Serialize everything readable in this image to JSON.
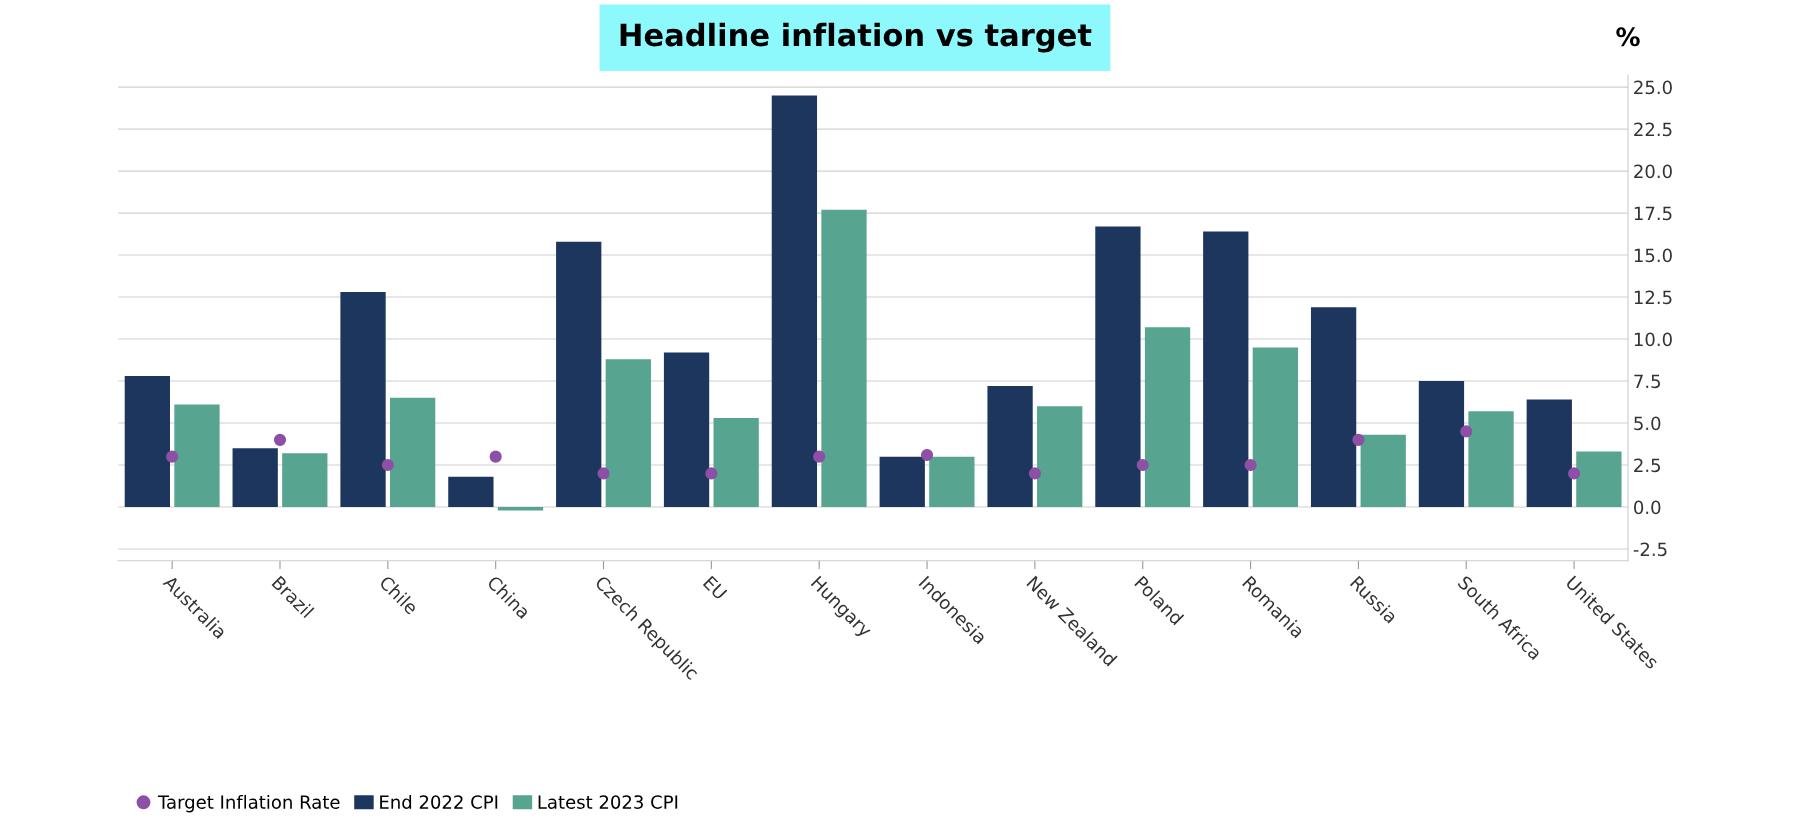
{
  "chart_data": {
    "type": "bar",
    "title": "Headline inflation vs target",
    "ylabel": "%",
    "categories": [
      "Australia",
      "Brazil",
      "Chile",
      "China",
      "Czech Republic",
      "EU",
      "Hungary",
      "Indonesia",
      "New Zealand",
      "Poland",
      "Romania",
      "Russia",
      "South Africa",
      "United States"
    ],
    "series": [
      {
        "name": "Target Inflation Rate",
        "type": "scatter",
        "color": "#8e4fa6",
        "values": [
          3.0,
          4.0,
          2.5,
          3.0,
          2.0,
          2.0,
          3.0,
          3.1,
          2.0,
          2.5,
          2.5,
          4.0,
          4.5,
          2.0
        ]
      },
      {
        "name": "End 2022 CPI",
        "color": "#1c365e",
        "values": [
          7.8,
          3.5,
          12.8,
          1.8,
          15.8,
          9.2,
          24.5,
          3.0,
          7.2,
          16.7,
          16.4,
          11.9,
          7.5,
          6.4
        ]
      },
      {
        "name": "Latest 2023 CPI",
        "color": "#57a490",
        "values": [
          6.1,
          3.2,
          6.5,
          -0.2,
          8.8,
          5.3,
          17.7,
          3.0,
          6.0,
          10.7,
          9.5,
          4.3,
          5.7,
          3.3
        ]
      }
    ],
    "ylim": [
      -3.2,
      25.7
    ],
    "yticks": [
      {
        "value": -2.5,
        "label": "-2.5"
      },
      {
        "value": 0,
        "label": "0.0"
      },
      {
        "value": 2.5,
        "label": "2.5"
      },
      {
        "value": 5,
        "label": "5.0"
      },
      {
        "value": 7.5,
        "label": "7.5"
      },
      {
        "value": 10,
        "label": "10.0"
      },
      {
        "value": 12.5,
        "label": "12.5"
      },
      {
        "value": 15,
        "label": "15.0"
      },
      {
        "value": 17.5,
        "label": "17.5"
      },
      {
        "value": 20,
        "label": "20.0"
      },
      {
        "value": 22.5,
        "label": "22.5"
      },
      {
        "value": 25,
        "label": "25.0"
      }
    ],
    "grid": "y",
    "legend": "bottom left",
    "marker": "circle"
  }
}
